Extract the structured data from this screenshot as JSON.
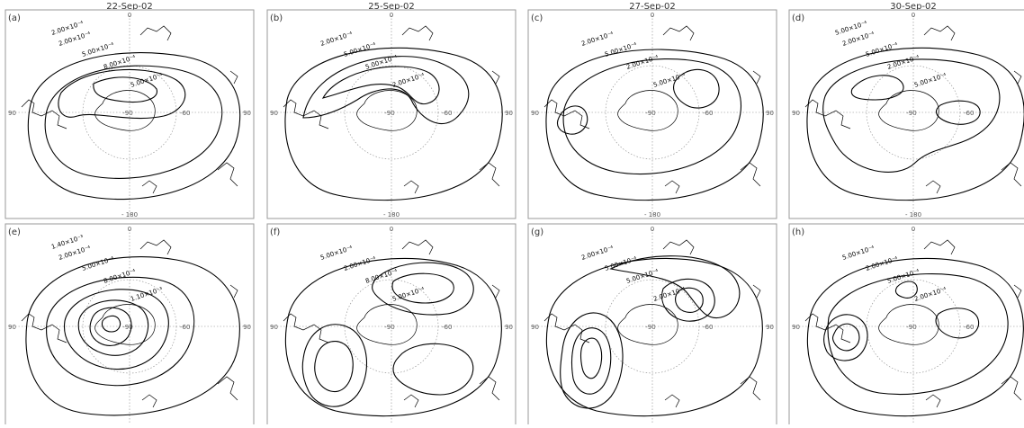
{
  "dates": [
    "22-Sep-02",
    "25-Sep-02",
    "27-Sep-02",
    "30-Sep-02"
  ],
  "panels": [
    {
      "id": "(a)",
      "row": 0,
      "col": 0,
      "contour_labels": [
        "2.00×10⁻⁴",
        "5.00×10⁻⁴",
        "8.00×10⁻⁴",
        "5.00×10⁻⁴",
        "2.00×10⁻⁴"
      ]
    },
    {
      "id": "(b)",
      "row": 0,
      "col": 1,
      "contour_labels": [
        "2.00×10⁻⁴",
        "5.00×10⁻⁴",
        "5.00×10⁻⁴",
        "2.00×10⁻⁴"
      ]
    },
    {
      "id": "(c)",
      "row": 0,
      "col": 2,
      "contour_labels": [
        "2.00×10⁻⁴",
        "5.00×10⁻⁴",
        "2.00×10⁻⁴",
        "5.00×10⁻⁴"
      ]
    },
    {
      "id": "(d)",
      "row": 0,
      "col": 3,
      "contour_labels": [
        "2.00×10⁻⁴",
        "5.00×10⁻⁴",
        "2.00×10⁻⁴",
        "5.00×10⁻⁴",
        "5.00×10⁻⁴"
      ]
    },
    {
      "id": "(e)",
      "row": 1,
      "col": 0,
      "contour_labels": [
        "2.00×10⁻⁴",
        "5.00×10⁻⁴",
        "8.00×10⁻⁴",
        "1.10×10⁻³",
        "1.40×10⁻³"
      ]
    },
    {
      "id": "(f)",
      "row": 1,
      "col": 1,
      "contour_labels": [
        "5.00×10⁻⁴",
        "2.00×10⁻⁴",
        "8.00×10⁻⁴",
        "5.00×10⁻⁴"
      ]
    },
    {
      "id": "(g)",
      "row": 1,
      "col": 2,
      "contour_labels": [
        "2.00×10⁻⁴",
        "5.00×10⁻⁴",
        "5.00×10⁻⁴",
        "2.00×10⁻⁴"
      ]
    },
    {
      "id": "(h)",
      "row": 1,
      "col": 3,
      "contour_labels": [
        "5.00×10⁻⁴",
        "2.00×10⁻⁴",
        "5.00×10⁻⁴",
        "2.00×10⁻⁴"
      ]
    }
  ],
  "axis_labels": {
    "top": "0",
    "left": "90",
    "right": "90",
    "bottom": "180",
    "center_lon": "90",
    "inner_right": "60"
  },
  "style": {
    "line_color": "#000000",
    "grid_color": "#888888",
    "frame_color": "#999999",
    "title_color": "#333333"
  }
}
